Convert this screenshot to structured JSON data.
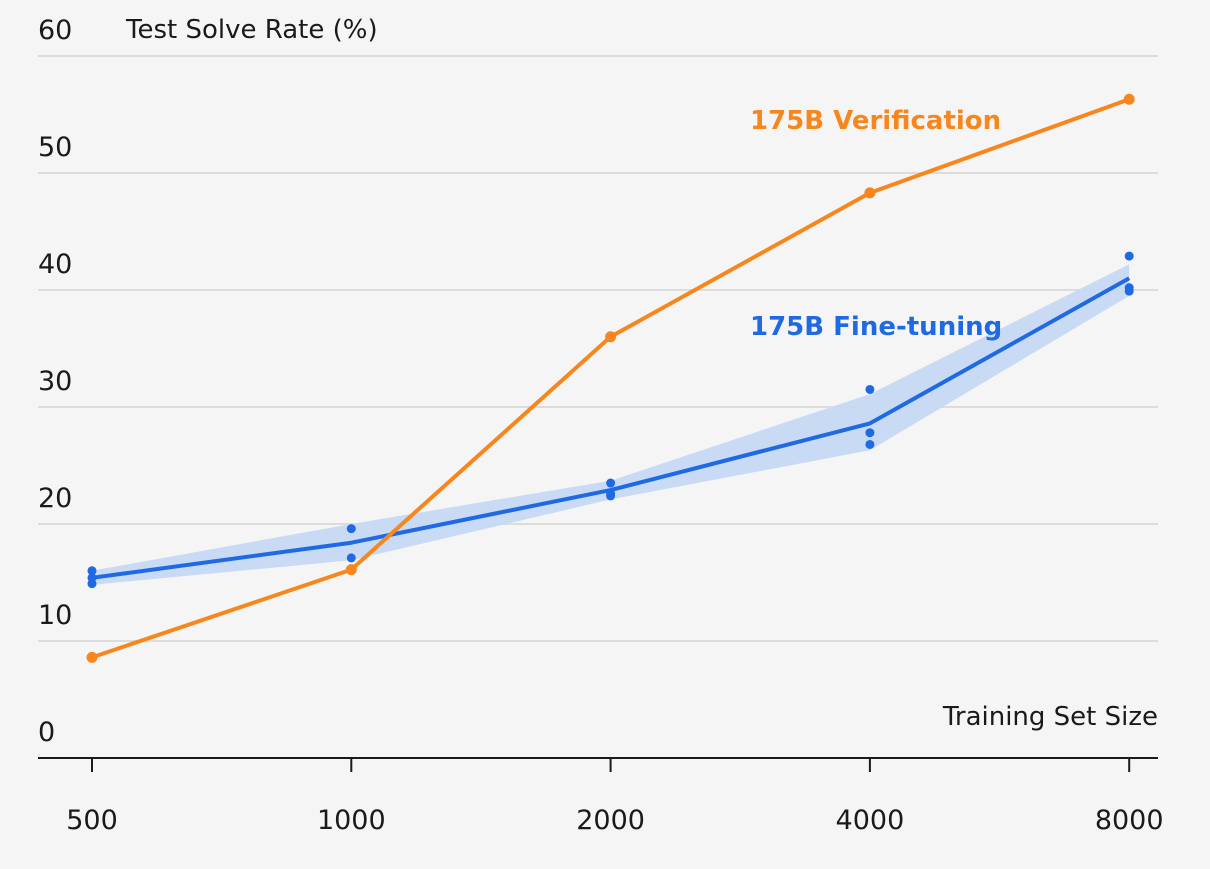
{
  "chart_data": {
    "type": "line",
    "ylabel": "Test Solve Rate (%)",
    "xlabel": "Training Set Size",
    "x_scale": "log2",
    "x": [
      500,
      1000,
      2000,
      4000,
      8000
    ],
    "x_tick_labels": [
      "500",
      "1000",
      "2000",
      "4000",
      "8000"
    ],
    "y_ticks": [
      0,
      10,
      20,
      30,
      40,
      50,
      60
    ],
    "y_tick_labels": [
      "0",
      "10",
      "20",
      "30",
      "40",
      "50",
      "60"
    ],
    "ylim": [
      0,
      60
    ],
    "grid": true,
    "series": [
      {
        "name": "175B Verification",
        "color": "#f7861c",
        "values": [
          8.6,
          16.1,
          36.0,
          48.3,
          56.3
        ],
        "markers": true
      },
      {
        "name": "175B Fine-tuning",
        "color": "#1f6ae3",
        "band_color": "#c6d8f3",
        "values": [
          15.4,
          18.4,
          22.9,
          28.6,
          41.0
        ],
        "band_upper": [
          16.0,
          20.0,
          23.7,
          31.1,
          42.2
        ],
        "band_lower": [
          14.8,
          16.9,
          22.1,
          26.3,
          39.5
        ],
        "points": [
          [
            500,
            16.0
          ],
          [
            500,
            15.4
          ],
          [
            500,
            14.9
          ],
          [
            1000,
            19.6
          ],
          [
            1000,
            17.1
          ],
          [
            2000,
            23.5
          ],
          [
            2000,
            22.6
          ],
          [
            2000,
            22.4
          ],
          [
            4000,
            31.5
          ],
          [
            4000,
            27.8
          ],
          [
            4000,
            26.8
          ],
          [
            8000,
            42.9
          ],
          [
            8000,
            40.2
          ],
          [
            8000,
            39.9
          ]
        ]
      }
    ]
  }
}
